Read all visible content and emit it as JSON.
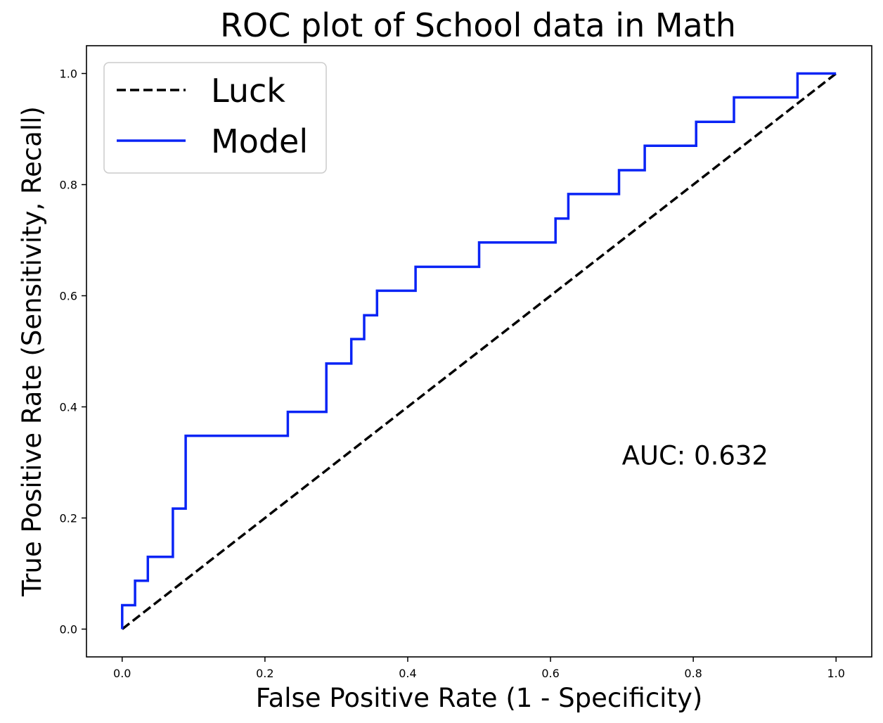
{
  "chart_data": {
    "type": "line",
    "title": "ROC plot of School data in Math",
    "xlabel": "False Positive Rate (1 - Specificity)",
    "ylabel": "True Positive Rate (Sensitivity, Recall)",
    "xlim": [
      -0.05,
      1.05
    ],
    "ylim": [
      -0.05,
      1.05
    ],
    "xticks": [
      "0.0",
      "0.2",
      "0.4",
      "0.6",
      "0.8",
      "1.0"
    ],
    "yticks": [
      "0.0",
      "0.2",
      "0.4",
      "0.6",
      "0.8",
      "1.0"
    ],
    "grid": false,
    "legend": {
      "placement": "top-left",
      "entries": [
        "Luck",
        "Model"
      ]
    },
    "annotation": "AUC: 0.632",
    "series": [
      {
        "name": "Luck",
        "style": "dashed",
        "color": "#000000",
        "x": [
          0,
          1
        ],
        "y": [
          0,
          1
        ]
      },
      {
        "name": "Model",
        "style": "solid",
        "color": "#0a24f5",
        "x": [
          0.0,
          0.0,
          0.018,
          0.018,
          0.036,
          0.036,
          0.071,
          0.071,
          0.089,
          0.089,
          0.232,
          0.232,
          0.286,
          0.286,
          0.321,
          0.321,
          0.339,
          0.339,
          0.357,
          0.357,
          0.411,
          0.411,
          0.5,
          0.5,
          0.607,
          0.607,
          0.625,
          0.625,
          0.696,
          0.696,
          0.732,
          0.732,
          0.804,
          0.804,
          0.857,
          0.857,
          0.946,
          0.946,
          1.0
        ],
        "y": [
          0.0,
          0.043,
          0.043,
          0.087,
          0.087,
          0.13,
          0.13,
          0.217,
          0.217,
          0.348,
          0.348,
          0.391,
          0.391,
          0.478,
          0.478,
          0.522,
          0.522,
          0.565,
          0.565,
          0.609,
          0.609,
          0.652,
          0.652,
          0.696,
          0.696,
          0.739,
          0.739,
          0.783,
          0.783,
          0.826,
          0.826,
          0.87,
          0.87,
          0.913,
          0.913,
          0.957,
          0.957,
          1.0,
          1.0
        ]
      }
    ]
  }
}
